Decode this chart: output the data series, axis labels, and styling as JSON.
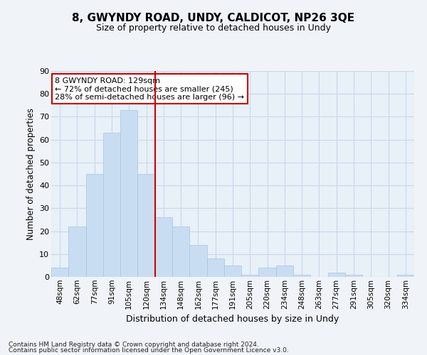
{
  "title": "8, GWYNDY ROAD, UNDY, CALDICOT, NP26 3QE",
  "subtitle": "Size of property relative to detached houses in Undy",
  "xlabel": "Distribution of detached houses by size in Undy",
  "ylabel": "Number of detached properties",
  "categories": [
    "48sqm",
    "62sqm",
    "77sqm",
    "91sqm",
    "105sqm",
    "120sqm",
    "134sqm",
    "148sqm",
    "162sqm",
    "177sqm",
    "191sqm",
    "205sqm",
    "220sqm",
    "234sqm",
    "248sqm",
    "263sqm",
    "277sqm",
    "291sqm",
    "305sqm",
    "320sqm",
    "334sqm"
  ],
  "values": [
    4,
    22,
    45,
    63,
    73,
    45,
    26,
    22,
    14,
    8,
    5,
    1,
    4,
    5,
    1,
    0,
    2,
    1,
    0,
    0,
    1
  ],
  "bar_color": "#c9ddf2",
  "bar_edge_color": "#a8c4e0",
  "vline_color": "#cc0000",
  "vline_x": 5.5,
  "annotation_line1": "8 GWYNDY ROAD: 129sqm",
  "annotation_line2": "← 72% of detached houses are smaller (245)",
  "annotation_line3": "28% of semi-detached houses are larger (96) →",
  "annotation_box_color": "#ffffff",
  "annotation_box_edge_color": "#cc0000",
  "ylim": [
    0,
    90
  ],
  "yticks": [
    0,
    10,
    20,
    30,
    40,
    50,
    60,
    70,
    80,
    90
  ],
  "grid_color": "#c8d8e8",
  "bg_color": "#e8f0f8",
  "fig_bg_color": "#f0f4f8",
  "footer_line1": "Contains HM Land Registry data © Crown copyright and database right 2024.",
  "footer_line2": "Contains public sector information licensed under the Open Government Licence v3.0."
}
